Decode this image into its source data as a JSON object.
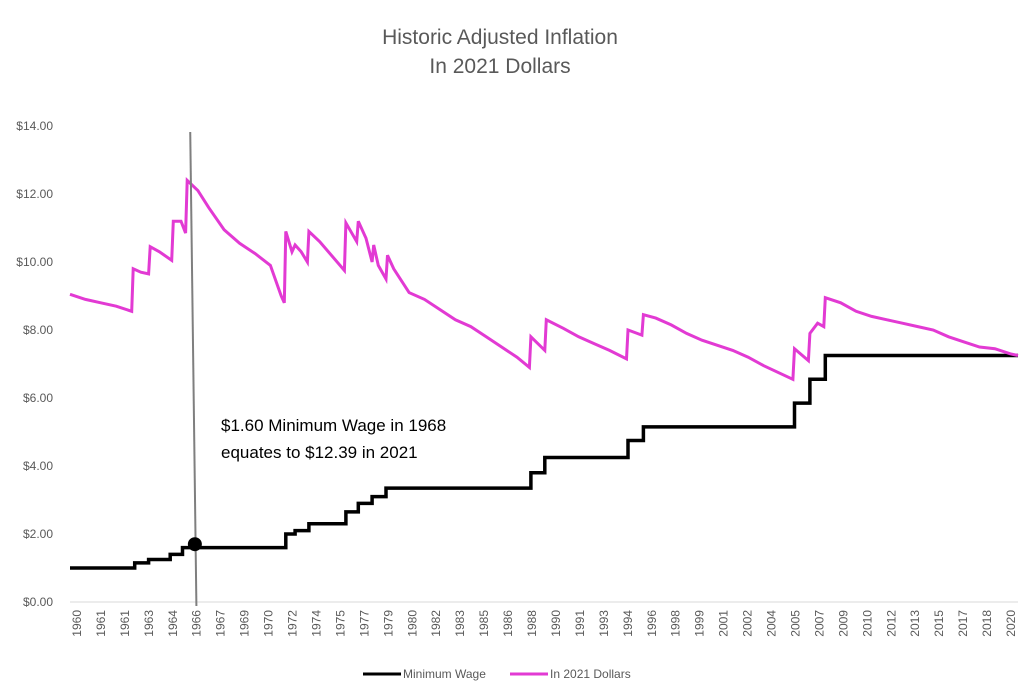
{
  "chart_data": {
    "type": "line",
    "title": [
      "Historic Adjusted Inflation",
      "In 2021 Dollars"
    ],
    "xlabel": "",
    "ylabel": "",
    "x_tick_labels": [
      "1960",
      "1961",
      "1961",
      "1963",
      "1964",
      "1966",
      "1967",
      "1969",
      "1970",
      "1972",
      "1974",
      "1975",
      "1977",
      "1979",
      "1980",
      "1982",
      "1983",
      "1985",
      "1986",
      "1988",
      "1990",
      "1991",
      "1993",
      "1994",
      "1996",
      "1998",
      "1999",
      "2001",
      "2002",
      "2004",
      "2005",
      "2007",
      "2009",
      "2010",
      "2012",
      "2013",
      "2015",
      "2017",
      "2018",
      "2020"
    ],
    "y_tick_labels": [
      "$0.00",
      "$2.00",
      "$4.00",
      "$6.00",
      "$8.00",
      "$10.00",
      "$12.00",
      "$14.00"
    ],
    "xlim": [
      1960,
      2021.5
    ],
    "ylim": [
      0,
      14
    ],
    "grid": false,
    "legend_position": "bottom",
    "annotation": {
      "lines": [
        "$1.60 Minimum Wage in 1968",
        "equates to $12.39 in 2021"
      ],
      "marker_x": 1968.1,
      "marker_y": 1.7,
      "vline_x_top": 1967.8,
      "vline_x_bottom": 1968.2
    },
    "series": [
      {
        "name": "Minimum Wage",
        "color": "#000000",
        "step": true,
        "points": [
          [
            1960,
            1.0
          ],
          [
            1964.2,
            1.15
          ],
          [
            1965.1,
            1.25
          ],
          [
            1966.5,
            1.4
          ],
          [
            1967.3,
            1.6
          ],
          [
            1974.0,
            2.0
          ],
          [
            1974.6,
            2.1
          ],
          [
            1975.5,
            2.3
          ],
          [
            1977.9,
            2.65
          ],
          [
            1978.7,
            2.9
          ],
          [
            1979.6,
            3.1
          ],
          [
            1980.5,
            3.35
          ],
          [
            1989.9,
            3.8
          ],
          [
            1990.8,
            4.25
          ],
          [
            1996.2,
            4.75
          ],
          [
            1997.2,
            5.15
          ],
          [
            2007.0,
            5.85
          ],
          [
            2008.0,
            6.55
          ],
          [
            2009.0,
            7.25
          ],
          [
            2021.5,
            7.25
          ]
        ]
      },
      {
        "name": "In 2021 Dollars",
        "color": "#e23ad3",
        "step": false,
        "points": [
          [
            1960,
            9.05
          ],
          [
            1961,
            8.9
          ],
          [
            1962,
            8.8
          ],
          [
            1963,
            8.7
          ],
          [
            1964,
            8.55
          ],
          [
            1964.1,
            9.8
          ],
          [
            1964.6,
            9.7
          ],
          [
            1965.1,
            9.65
          ],
          [
            1965.2,
            10.45
          ],
          [
            1965.8,
            10.3
          ],
          [
            1966.6,
            10.05
          ],
          [
            1966.7,
            11.2
          ],
          [
            1967.2,
            11.2
          ],
          [
            1967.5,
            10.85
          ],
          [
            1967.6,
            12.4
          ],
          [
            1968.3,
            12.1
          ],
          [
            1969,
            11.6
          ],
          [
            1970,
            10.95
          ],
          [
            1971,
            10.55
          ],
          [
            1972,
            10.25
          ],
          [
            1973,
            9.9
          ],
          [
            1973.7,
            9.0
          ],
          [
            1973.9,
            8.8
          ],
          [
            1974.0,
            10.9
          ],
          [
            1974.4,
            10.3
          ],
          [
            1974.6,
            10.5
          ],
          [
            1975,
            10.3
          ],
          [
            1975.4,
            10.0
          ],
          [
            1975.5,
            10.9
          ],
          [
            1976.2,
            10.6
          ],
          [
            1977.8,
            9.75
          ],
          [
            1977.9,
            11.15
          ],
          [
            1978.6,
            10.6
          ],
          [
            1978.7,
            11.2
          ],
          [
            1979.2,
            10.7
          ],
          [
            1979.6,
            10.0
          ],
          [
            1979.7,
            10.5
          ],
          [
            1980.0,
            9.9
          ],
          [
            1980.5,
            9.5
          ],
          [
            1980.6,
            10.2
          ],
          [
            1981,
            9.8
          ],
          [
            1982,
            9.1
          ],
          [
            1983,
            8.9
          ],
          [
            1984,
            8.6
          ],
          [
            1985,
            8.3
          ],
          [
            1986,
            8.1
          ],
          [
            1987,
            7.8
          ],
          [
            1988,
            7.5
          ],
          [
            1989,
            7.2
          ],
          [
            1989.8,
            6.9
          ],
          [
            1989.9,
            7.8
          ],
          [
            1990.8,
            7.4
          ],
          [
            1990.9,
            8.3
          ],
          [
            1992,
            8.05
          ],
          [
            1993,
            7.8
          ],
          [
            1994,
            7.6
          ],
          [
            1995,
            7.4
          ],
          [
            1996.1,
            7.15
          ],
          [
            1996.2,
            8.0
          ],
          [
            1997.1,
            7.85
          ],
          [
            1997.2,
            8.45
          ],
          [
            1998,
            8.35
          ],
          [
            1999,
            8.15
          ],
          [
            2000,
            7.9
          ],
          [
            2001,
            7.7
          ],
          [
            2002,
            7.55
          ],
          [
            2003,
            7.4
          ],
          [
            2004,
            7.2
          ],
          [
            2005,
            6.95
          ],
          [
            2006.9,
            6.55
          ],
          [
            2007.0,
            7.45
          ],
          [
            2007.9,
            7.1
          ],
          [
            2008.0,
            7.9
          ],
          [
            2008.5,
            8.2
          ],
          [
            2008.9,
            8.1
          ],
          [
            2009.0,
            8.95
          ],
          [
            2010,
            8.8
          ],
          [
            2011,
            8.55
          ],
          [
            2012,
            8.4
          ],
          [
            2013,
            8.3
          ],
          [
            2014,
            8.2
          ],
          [
            2015,
            8.1
          ],
          [
            2016,
            8.0
          ],
          [
            2017,
            7.8
          ],
          [
            2018,
            7.65
          ],
          [
            2019,
            7.5
          ],
          [
            2020,
            7.45
          ],
          [
            2021,
            7.3
          ],
          [
            2021.5,
            7.25
          ]
        ]
      }
    ]
  }
}
